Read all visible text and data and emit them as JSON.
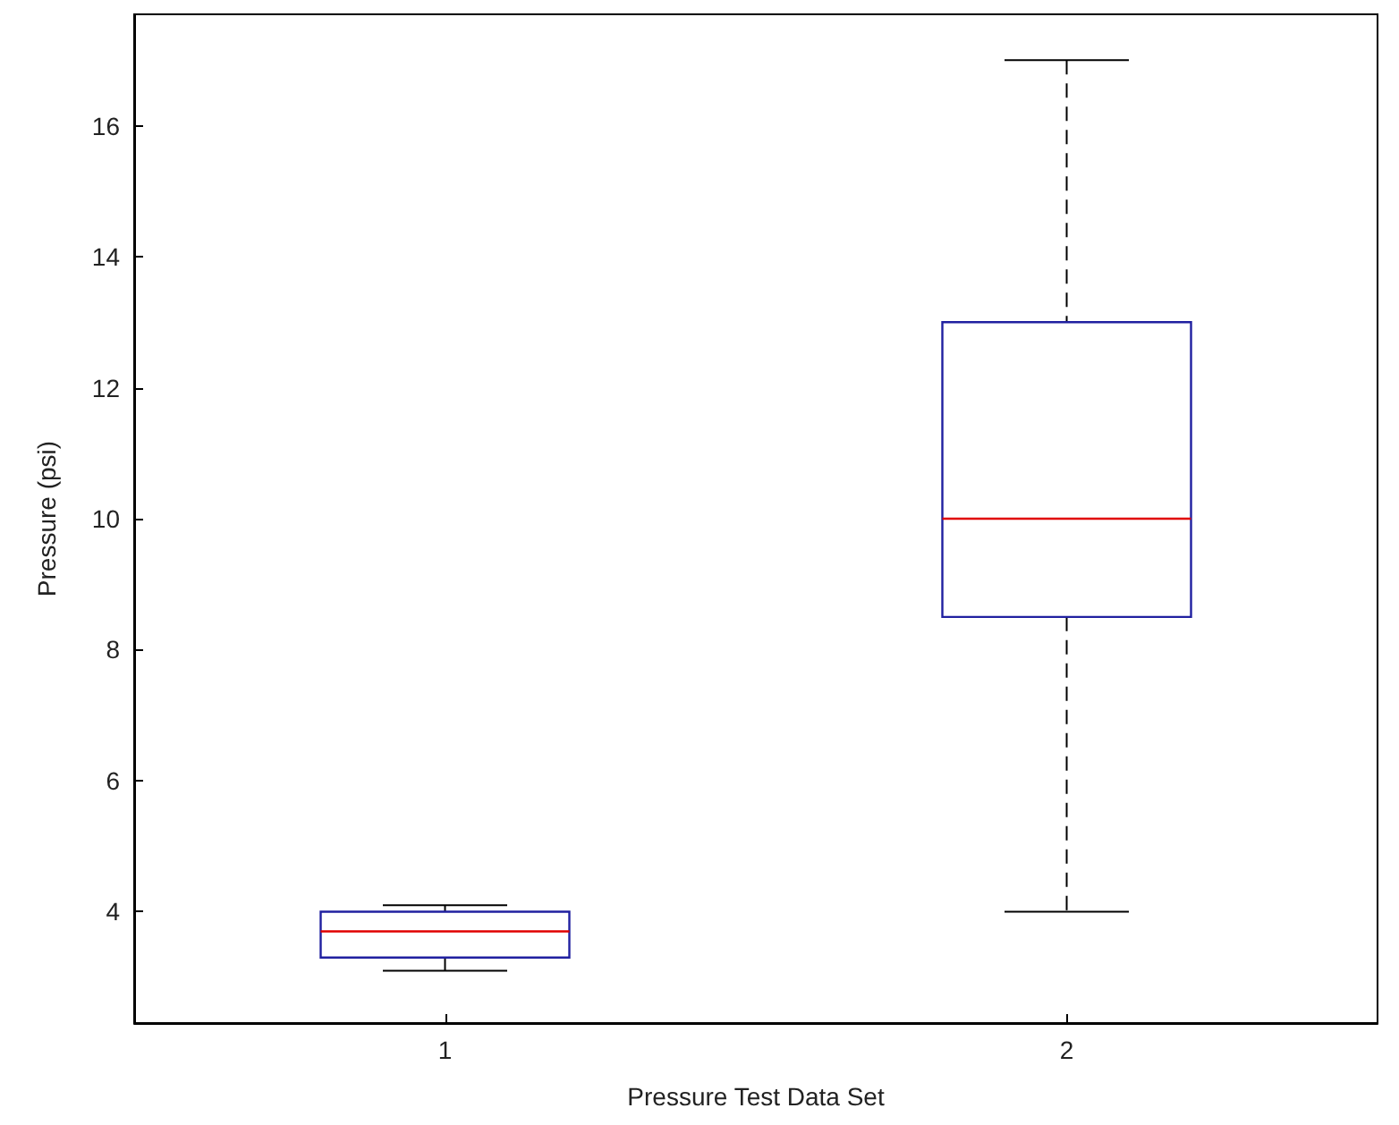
{
  "chart_data": {
    "type": "box",
    "xlabel": "Pressure Test Data Set",
    "ylabel": "Pressure (psi)",
    "categories": [
      "1",
      "2"
    ],
    "color": "#2020a0",
    "boxes": [
      {
        "low": 3.1,
        "q1": 3.3,
        "median": 3.7,
        "q3": 4.0,
        "high": 4.1
      },
      {
        "low": 4,
        "q1": 8.5,
        "median": 10,
        "q3": 13,
        "high": 17
      }
    ],
    "ylim": [
      2.3,
      17.7
    ],
    "yticks": [
      4,
      6,
      8,
      10,
      12,
      14,
      16
    ],
    "grid": false
  }
}
